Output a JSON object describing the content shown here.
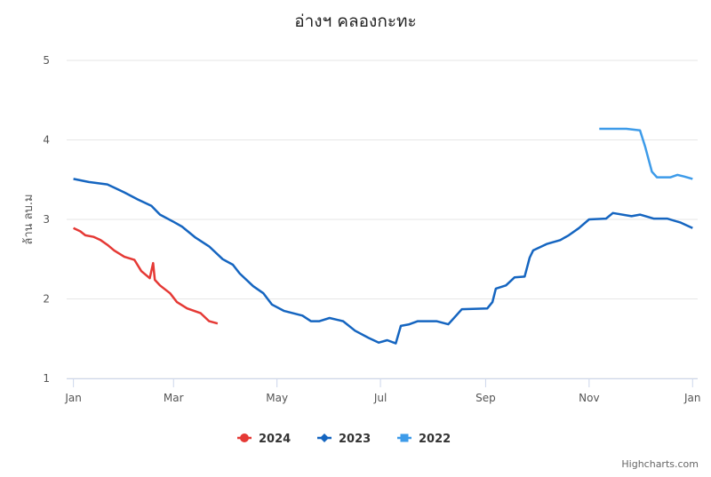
{
  "chart_data": {
    "type": "line",
    "title": "อ่างฯ คลองกะทะ",
    "y_label": "ล้าน ลบ.ม",
    "credits": "Highcharts.com",
    "xlim": [
      -4,
      368
    ],
    "xticks": [
      {
        "value": 0,
        "label": "Jan"
      },
      {
        "value": 59,
        "label": "Mar"
      },
      {
        "value": 120,
        "label": "May"
      },
      {
        "value": 181,
        "label": "Jul"
      },
      {
        "value": 243,
        "label": "Sep"
      },
      {
        "value": 304,
        "label": "Nov"
      },
      {
        "value": 365,
        "label": "Jan"
      }
    ],
    "ylim": [
      1,
      5
    ],
    "yticks": [
      1,
      2,
      3,
      4,
      5
    ],
    "grid": true,
    "legend": "bottom",
    "series": [
      {
        "name": "2024",
        "color": "#e53935",
        "marker": "circle",
        "x": [
          0,
          4,
          7,
          12,
          16,
          20,
          24,
          30,
          36,
          40,
          45,
          47,
          48,
          51,
          57,
          61,
          67,
          75,
          80,
          85
        ],
        "values": [
          2.89,
          2.85,
          2.8,
          2.78,
          2.74,
          2.68,
          2.61,
          2.53,
          2.49,
          2.35,
          2.26,
          2.45,
          2.24,
          2.17,
          2.07,
          1.96,
          1.88,
          1.82,
          1.72,
          1.69
        ]
      },
      {
        "name": "2023",
        "color": "#1565c0",
        "marker": "diamond",
        "x": [
          0,
          9,
          20,
          30,
          38,
          46,
          51,
          59,
          64,
          72,
          80,
          88,
          94,
          98,
          106,
          112,
          117,
          124,
          135,
          140,
          145,
          151,
          159,
          166,
          174,
          180,
          185,
          190,
          193,
          198,
          203,
          214,
          221,
          229,
          244,
          247,
          249,
          255,
          260,
          266,
          269,
          271,
          279,
          287,
          292,
          298,
          304,
          314,
          318,
          329,
          334,
          342,
          350,
          358,
          365
        ],
        "values": [
          3.51,
          3.47,
          3.44,
          3.34,
          3.25,
          3.17,
          3.06,
          2.97,
          2.91,
          2.77,
          2.66,
          2.5,
          2.43,
          2.32,
          2.16,
          2.07,
          1.93,
          1.85,
          1.79,
          1.72,
          1.72,
          1.76,
          1.72,
          1.6,
          1.51,
          1.45,
          1.48,
          1.44,
          1.66,
          1.68,
          1.72,
          1.72,
          1.68,
          1.87,
          1.88,
          1.96,
          2.13,
          2.17,
          2.27,
          2.28,
          2.52,
          2.61,
          2.69,
          2.74,
          2.8,
          2.89,
          3.0,
          3.01,
          3.08,
          3.04,
          3.06,
          3.01,
          3.01,
          2.96,
          2.89
        ]
      },
      {
        "name": "2022",
        "color": "#3d9be9",
        "marker": "square",
        "x": [
          310,
          321,
          326,
          334,
          337,
          341,
          344,
          352,
          356,
          360,
          365
        ],
        "values": [
          4.14,
          4.14,
          4.14,
          4.12,
          3.92,
          3.6,
          3.53,
          3.53,
          3.56,
          3.54,
          3.51
        ]
      }
    ]
  }
}
